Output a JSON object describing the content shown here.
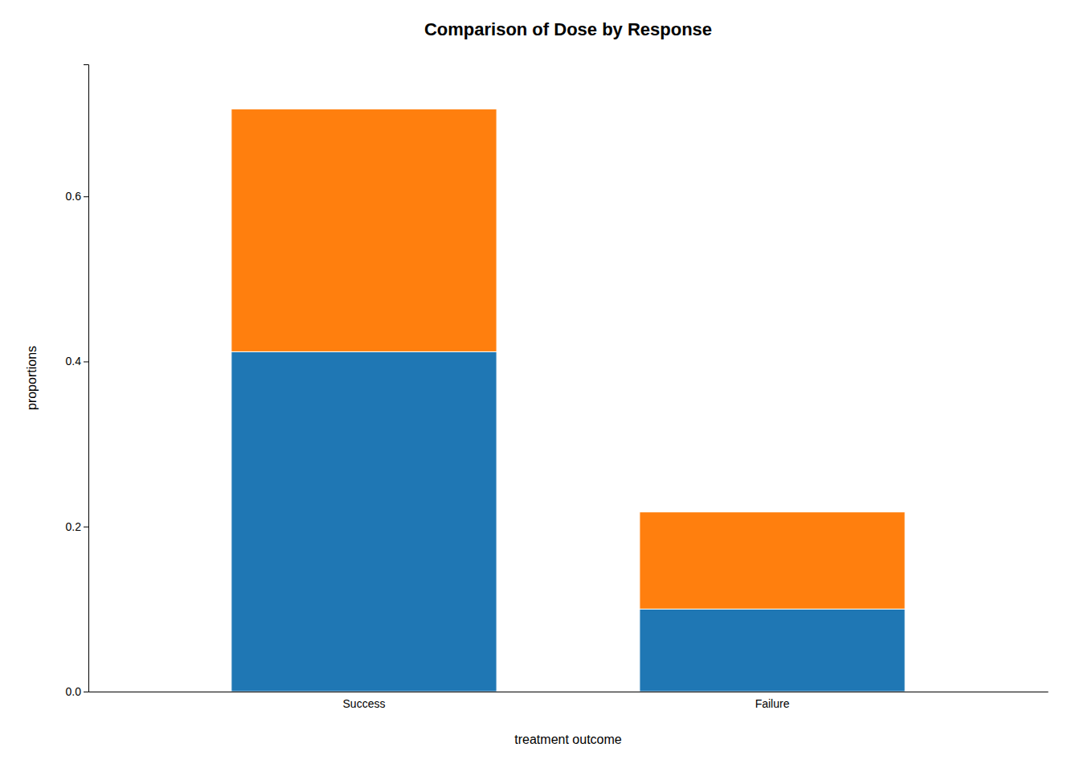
{
  "chart_data": {
    "type": "bar",
    "title": "Comparison of Dose by Response",
    "x_label": "treatment outcome",
    "y_label": "proportions",
    "categories": [
      "Success",
      "Failure"
    ],
    "stacked": true,
    "series": [
      {
        "values": [
          0.4117647,
          0.1
        ]
      },
      {
        "values": [
          0.2941176,
          0.1176471
        ]
      }
    ],
    "ylim": [
      0,
      0.76
    ],
    "yticks": [
      {
        "value": 0.0,
        "label": "0.0"
      },
      0.2,
      0.4,
      0.6
    ],
    "grid": false
  }
}
